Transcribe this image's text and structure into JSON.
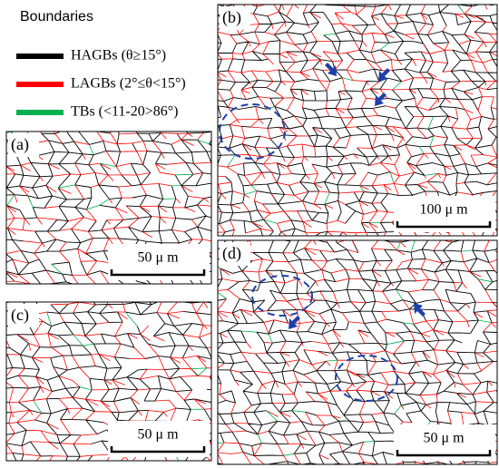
{
  "legend": {
    "title": "Boundaries",
    "items": [
      {
        "label": "HAGBs (θ≥15°)",
        "color": "#000000"
      },
      {
        "label": "LAGBs (2°≤θ<15°)",
        "color": "#ff0000"
      },
      {
        "label": "TBs (<11-20>86°)",
        "color": "#00b050"
      }
    ]
  },
  "panels": [
    {
      "label": "(a)",
      "scale_bar": "50 μ m"
    },
    {
      "label": "(b)",
      "scale_bar": "100 μ m"
    },
    {
      "label": "(c)",
      "scale_bar": "50 μ m"
    },
    {
      "label": "(d)",
      "scale_bar": "50 μ m"
    }
  ]
}
